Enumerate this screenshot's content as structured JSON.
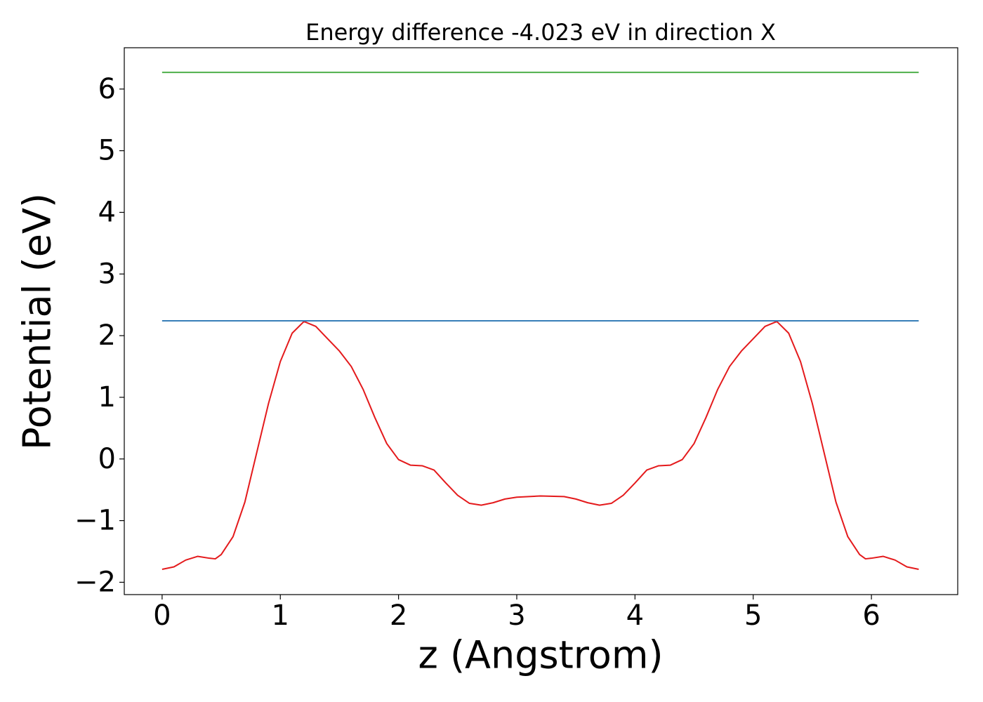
{
  "chart_data": {
    "type": "line",
    "title": "Energy difference -4.023 eV in direction X",
    "xlabel": "z (Angstrom)",
    "ylabel": "Potential (eV)",
    "xlim": [
      -0.32,
      6.73
    ],
    "ylim": [
      -2.2,
      6.67
    ],
    "xticks": [
      0,
      1,
      2,
      3,
      4,
      5,
      6
    ],
    "yticks": [
      {
        "value": -2,
        "label": "−2"
      },
      {
        "value": -1,
        "label": "−1"
      },
      0,
      1,
      2,
      3,
      4,
      5,
      6
    ],
    "grid": false,
    "series": [
      {
        "color": "#e41a1c",
        "x": [
          0,
          0.1,
          0.2,
          0.3,
          0.4,
          0.45,
          0.5,
          0.6,
          0.7,
          0.8,
          0.9,
          1.0,
          1.1,
          1.2,
          1.3,
          1.4,
          1.5,
          1.6,
          1.7,
          1.8,
          1.9,
          2.0,
          2.1,
          2.2,
          2.3,
          2.4,
          2.5,
          2.6,
          2.7,
          2.8,
          2.9,
          3.0,
          3.2,
          3.4,
          3.5,
          3.6,
          3.7,
          3.8,
          3.9,
          4.0,
          4.1,
          4.2,
          4.3,
          4.4,
          4.5,
          4.6,
          4.7,
          4.8,
          4.9,
          5.0,
          5.1,
          5.2,
          5.3,
          5.4,
          5.5,
          5.6,
          5.7,
          5.8,
          5.9,
          5.95,
          6.0,
          6.1,
          6.2,
          6.3,
          6.4
        ],
        "values": [
          -1.79,
          -1.75,
          -1.64,
          -1.58,
          -1.61,
          -1.62,
          -1.55,
          -1.26,
          -0.7,
          0.1,
          0.9,
          1.58,
          2.04,
          2.23,
          2.15,
          1.95,
          1.75,
          1.5,
          1.13,
          0.67,
          0.25,
          -0.01,
          -0.1,
          -0.11,
          -0.18,
          -0.39,
          -0.59,
          -0.72,
          -0.75,
          -0.71,
          -0.65,
          -0.62,
          -0.6,
          -0.61,
          -0.65,
          -0.71,
          -0.75,
          -0.72,
          -0.59,
          -0.39,
          -0.18,
          -0.11,
          -0.1,
          -0.01,
          0.25,
          0.67,
          1.13,
          1.5,
          1.75,
          1.95,
          2.15,
          2.23,
          2.04,
          1.58,
          0.9,
          0.1,
          -0.7,
          -1.26,
          -1.55,
          -1.62,
          -1.61,
          -1.58,
          -1.64,
          -1.75,
          -1.79
        ]
      },
      {
        "color": "#377eb8",
        "x": [
          0,
          6.4
        ],
        "values": [
          2.24,
          2.24
        ]
      },
      {
        "color": "#4daf4a",
        "x": [
          0,
          6.4
        ],
        "values": [
          6.27,
          6.27
        ]
      }
    ]
  }
}
